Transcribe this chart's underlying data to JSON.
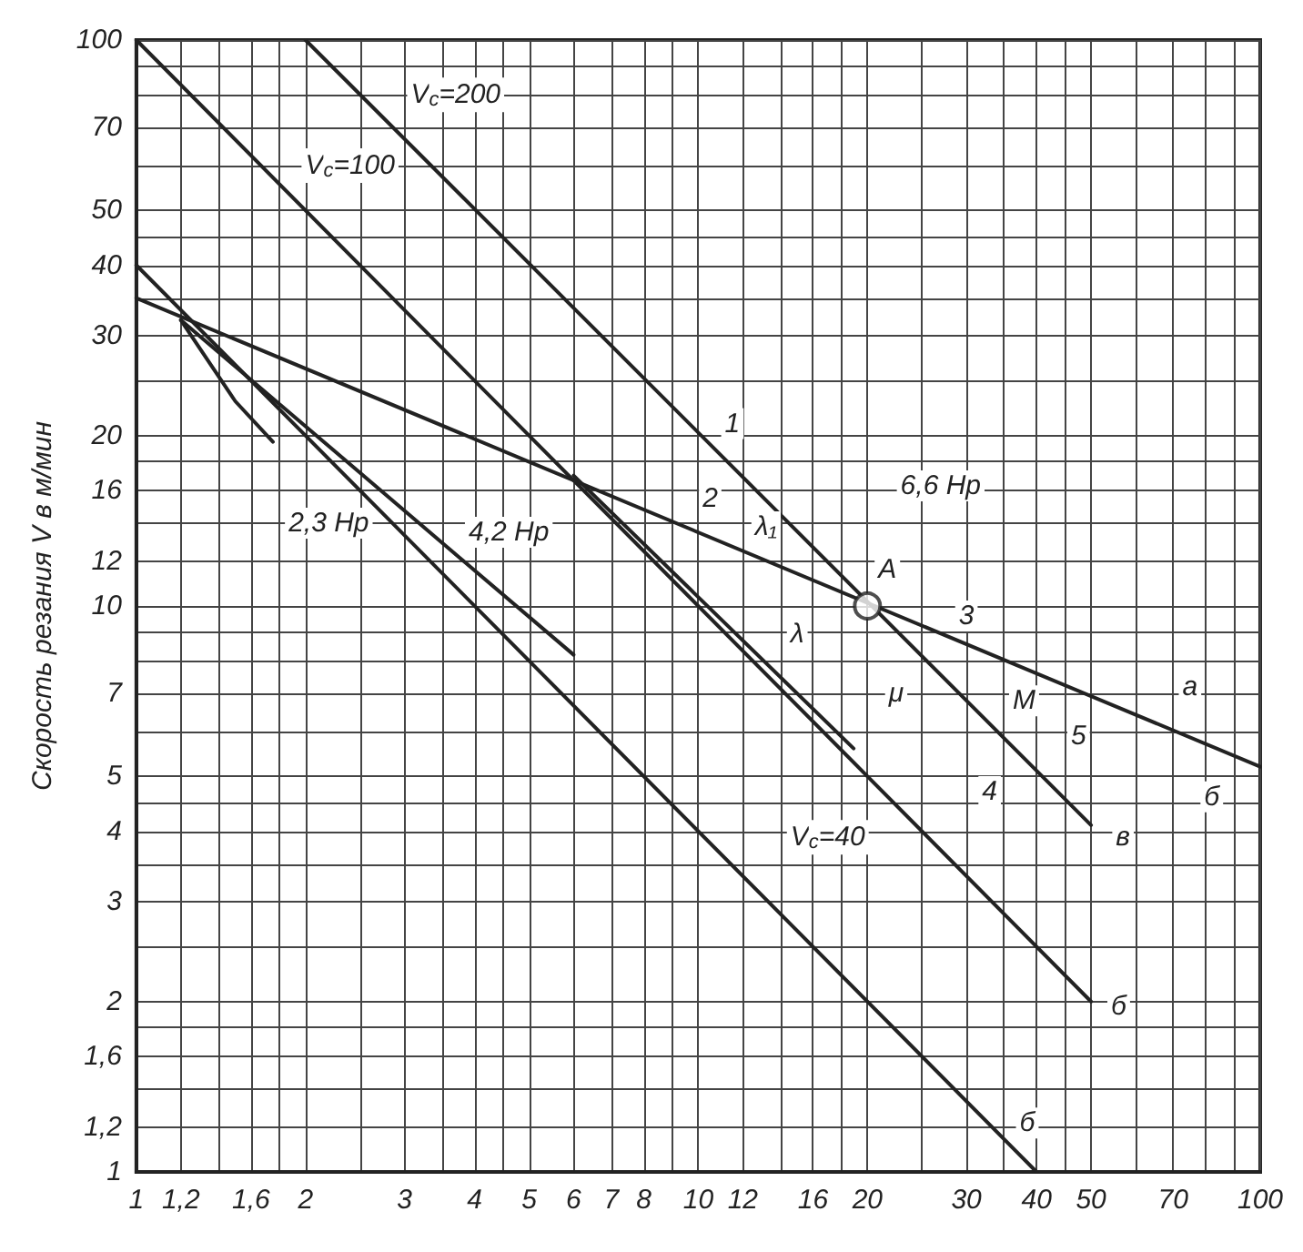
{
  "chart_data": {
    "type": "line",
    "ylabel": "Скорость резания V в м/мин",
    "log": "xy",
    "grid": true,
    "marker": "none",
    "line_style": "solid",
    "xlim": [
      1,
      100
    ],
    "ylim": [
      1,
      100
    ],
    "xticks": [
      1,
      {
        "value": 1.2,
        "label": "1,2"
      },
      {
        "value": 1.4,
        "label": null
      },
      {
        "value": 1.6,
        "label": "1,6"
      },
      {
        "value": 1.8,
        "label": null
      },
      2,
      {
        "value": 2.5,
        "label": null
      },
      3,
      {
        "value": 3.5,
        "label": null
      },
      4,
      {
        "value": 4.5,
        "label": null
      },
      5,
      6,
      7,
      8,
      {
        "value": 9,
        "label": null
      },
      10,
      12,
      {
        "value": 14,
        "label": null
      },
      16,
      {
        "value": 18,
        "label": null
      },
      20,
      {
        "value": 25,
        "label": null
      },
      30,
      {
        "value": 35,
        "label": null
      },
      40,
      {
        "value": 45,
        "label": null
      },
      50,
      {
        "value": 60,
        "label": null
      },
      70,
      {
        "value": 80,
        "label": null
      },
      {
        "value": 90,
        "label": null
      },
      100
    ],
    "yticks": [
      1,
      {
        "value": 1.2,
        "label": "1,2"
      },
      {
        "value": 1.4,
        "label": null
      },
      {
        "value": 1.6,
        "label": "1,6"
      },
      {
        "value": 1.8,
        "label": null
      },
      2,
      {
        "value": 2.5,
        "label": null
      },
      3,
      {
        "value": 3.5,
        "label": null
      },
      4,
      {
        "value": 4.5,
        "label": null
      },
      5,
      {
        "value": 6,
        "label": null
      },
      7,
      {
        "value": 8,
        "label": null
      },
      {
        "value": 9,
        "label": null
      },
      10,
      12,
      {
        "value": 14,
        "label": null
      },
      16,
      {
        "value": 18,
        "label": null
      },
      20,
      {
        "value": 25,
        "label": null
      },
      30,
      {
        "value": 35,
        "label": null
      },
      40,
      {
        "value": 45,
        "label": null
      },
      50,
      {
        "value": 60,
        "label": null
      },
      70,
      {
        "value": 80,
        "label": null
      },
      {
        "value": 90,
        "label": null
      },
      100
    ],
    "series": [
      {
        "color": "#222222",
        "x": [
          2,
          50
        ],
        "values": [
          100,
          4.1
        ]
      },
      {
        "color": "#222222",
        "x": [
          1,
          50
        ],
        "values": [
          100,
          2
        ]
      },
      {
        "color": "#222222",
        "x": [
          1,
          40
        ],
        "values": [
          40,
          1
        ]
      },
      {
        "color": "#222222",
        "x": [
          1,
          100
        ],
        "values": [
          35,
          5.2
        ]
      },
      {
        "color": "#222222",
        "x": [
          1.2,
          6
        ],
        "values": [
          32,
          8.2
        ]
      },
      {
        "color": "#222222",
        "x": [
          6,
          18.9
        ],
        "values": [
          17,
          5.6
        ]
      },
      {
        "color": "#222222",
        "x": [
          1.2,
          1.5,
          1.75
        ],
        "values": [
          32,
          23,
          19.5
        ]
      },
      {
        "type": "scatter",
        "marker": "circle",
        "color": "#222222",
        "x": [
          20
        ],
        "values": [
          10
        ]
      }
    ],
    "annotations": [
      "V$_{c}$=200",
      "V$_{c}$=100",
      "V$_{c}$=40",
      "2,3 Нр",
      "4,2 Нр",
      "6,6 Нр",
      "1",
      "2",
      "λ₁",
      "A",
      "λ",
      "μ",
      "3",
      "M",
      "5",
      "4",
      "a",
      "б",
      "в",
      "б",
      "б"
    ]
  }
}
